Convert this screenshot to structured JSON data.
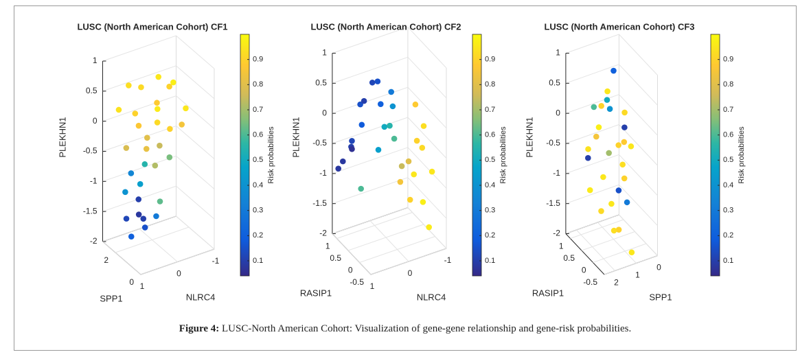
{
  "chart_data": [
    {
      "type": "scatter3d",
      "title": "LUSC (North American Cohort) CF1",
      "xlabel": "SPP1",
      "ylabel": "NLRC4",
      "zlabel": "PLEKHN1",
      "xlim": [
        0,
        3
      ],
      "xticks": [
        0,
        2
      ],
      "ylim": [
        -1,
        1
      ],
      "yticks": [
        -1,
        0,
        1
      ],
      "zlim": [
        -2,
        1
      ],
      "zticks": [
        -2,
        -1.5,
        -1,
        -0.5,
        0,
        0.5,
        1
      ],
      "grid": true,
      "colorbar_label": "Risk probabilities",
      "clim": [
        0.04,
        1.0
      ],
      "cticks": [
        0.1,
        0.2,
        0.3,
        0.4,
        0.5,
        0.6,
        0.7,
        0.8,
        0.9
      ],
      "colormap": "parula",
      "x": [
        1.5,
        2,
        1.2,
        1.8,
        2.4,
        1,
        1.6,
        0.8,
        2.2,
        1.3,
        1.9,
        0.6,
        2.6,
        1.4,
        1,
        2.1,
        1.7,
        0.9,
        2.3,
        1.5,
        2,
        1.2,
        2.5,
        1.8,
        0.8,
        2.2,
        1.6,
        2,
        1.4,
        2.4,
        1.9,
        1.1
      ],
      "y": [
        0,
        0.3,
        -0.3,
        -0.4,
        0.5,
        0.2,
        0.6,
        -0.5,
        -0.2,
        0.1,
        0.4,
        0,
        0.7,
        -0.6,
        0.5,
        0.1,
        -0.1,
        0.3,
        0.6,
        -0.3,
        0.2,
        0.6,
        0.4,
        0.8,
        0.2,
        0.3,
        0.5,
        0.7,
        0.4,
        0.1,
        0.6,
        0.2
      ],
      "z": [
        0.8,
        0.6,
        0.7,
        0.5,
        0.6,
        0.4,
        0.3,
        0.3,
        0.2,
        0.1,
        0,
        0.1,
        0.2,
        -0.1,
        -0.2,
        -0.3,
        -0.4,
        -0.5,
        -0.4,
        -0.6,
        -0.7,
        -0.8,
        -0.9,
        -1,
        -1.1,
        -1.3,
        -1.4,
        -1.5,
        -1.6,
        -1.7,
        -1.8,
        -1.4
      ],
      "values": [
        0.95,
        0.92,
        0.97,
        0.9,
        0.93,
        0.96,
        0.9,
        0.95,
        0.88,
        0.92,
        0.87,
        0.9,
        0.94,
        0.85,
        0.82,
        0.8,
        0.75,
        0.72,
        0.78,
        0.65,
        0.55,
        0.45,
        0.35,
        0.4,
        0.62,
        0.1,
        0.08,
        0.12,
        0.15,
        0.1,
        0.2,
        0.3
      ]
    },
    {
      "type": "scatter3d",
      "title": "LUSC (North American Cohort) CF2",
      "xlabel": "RASIP1",
      "ylabel": "NLRC4",
      "zlabel": "PLEKHN1",
      "xlim": [
        -0.5,
        1.2
      ],
      "xticks": [
        -0.5,
        0,
        0.5,
        1
      ],
      "ylim": [
        -1,
        1
      ],
      "yticks": [
        -1,
        0,
        1
      ],
      "zlim": [
        -2,
        1
      ],
      "zticks": [
        -2,
        -1.5,
        -1,
        -0.5,
        0,
        0.5,
        1
      ],
      "grid": true,
      "colorbar_label": "Risk probabilities",
      "clim": [
        0.04,
        1.0
      ],
      "cticks": [
        0.1,
        0.2,
        0.3,
        0.4,
        0.5,
        0.6,
        0.7,
        0.8,
        0.9
      ],
      "colormap": "parula",
      "x": [
        0.9,
        0.7,
        1,
        0.5,
        0.8,
        0.3,
        0.6,
        0.2,
        0.4,
        1.1,
        0.9,
        0.1,
        0.2,
        0.4,
        0,
        0.3,
        0.5,
        0,
        -0.2,
        0.1,
        -0.1,
        0.2,
        -0.3,
        0,
        0.1,
        -0.2,
        0.3,
        -0.4,
        0.2,
        0.6
      ],
      "y": [
        0.9,
        0.8,
        0.6,
        0.9,
        0.5,
        0.7,
        0.3,
        0.4,
        0.2,
        0.9,
        0.4,
        0.1,
        0,
        0.1,
        0.2,
        -0.1,
        0.2,
        -0.3,
        -0.4,
        -0.5,
        -0.6,
        -0.2,
        -0.5,
        -0.7,
        -0.4,
        -0.8,
        -0.3,
        -0.6,
        -0.6,
        0.6
      ],
      "z": [
        -0.7,
        -0.4,
        -0.6,
        -0.2,
        0.2,
        0.5,
        0.6,
        0.8,
        0.3,
        -0.9,
        -0.2,
        0.6,
        0.3,
        -0.1,
        0.1,
        -0.3,
        -0.5,
        -0.6,
        -0.2,
        -0.9,
        -0.4,
        -1,
        -1.2,
        -0.1,
        -1.3,
        -0.8,
        -0.8,
        -1.6,
        0.2,
        -1.1
      ],
      "values": [
        0.08,
        0.1,
        0.06,
        0.12,
        0.15,
        0.1,
        0.12,
        0.15,
        0.2,
        0.08,
        0.18,
        0.3,
        0.4,
        0.5,
        0.55,
        0.6,
        0.45,
        0.8,
        0.9,
        0.95,
        0.92,
        0.85,
        0.97,
        0.93,
        0.9,
        0.95,
        0.75,
        0.96,
        0.88,
        0.6
      ]
    },
    {
      "type": "scatter3d",
      "title": "LUSC (North American Cohort) CF3",
      "xlabel": "RASIP1",
      "ylabel": "SPP1",
      "zlabel": "PLEKHN1",
      "xlim": [
        -0.5,
        1.2
      ],
      "xticks": [
        -0.5,
        0,
        0.5,
        1
      ],
      "ylim": [
        0,
        2.5
      ],
      "yticks": [
        0,
        1,
        2
      ],
      "zlim": [
        -2,
        1
      ],
      "zticks": [
        -2,
        -1.5,
        -1,
        -0.5,
        0,
        0.5,
        1
      ],
      "grid": true,
      "colorbar_label": "Risk probabilities",
      "clim": [
        0.04,
        1.0
      ],
      "cticks": [
        0.1,
        0.2,
        0.3,
        0.4,
        0.5,
        0.6,
        0.7,
        0.8,
        0.9
      ],
      "colormap": "parula",
      "x": [
        0.3,
        0.5,
        0.1,
        0.6,
        0.2,
        0.4,
        0,
        0.7,
        0.2,
        0.5,
        0.1,
        0.8,
        0.3,
        -0.1,
        0.4,
        0.6,
        0,
        0.2,
        0.5,
        -0.2,
        0.3,
        0.9,
        0.1,
        0.6,
        0.4,
        -0.3,
        0.2
      ],
      "y": [
        1.5,
        1,
        2,
        1.2,
        0.8,
        1.8,
        1.3,
        1.6,
        0.5,
        2.2,
        1,
        0.9,
        1.7,
        1.4,
        0.6,
        2,
        0.9,
        1.9,
        1.1,
        1.5,
        0.7,
        1.5,
        1.6,
        0.4,
        2.3,
        1,
        1.3
      ],
      "z": [
        0.6,
        0.8,
        0.5,
        0.3,
        0.2,
        0,
        -0.2,
        -0.3,
        -0.4,
        -0.5,
        -0.6,
        -0.7,
        -0.8,
        -0.9,
        -1,
        -1.1,
        -1.2,
        -1.3,
        -1.4,
        -1.5,
        -0.1,
        0.1,
        0.4,
        -0.5,
        -0.3,
        -1.9,
        -1.7
      ],
      "values": [
        0.95,
        0.2,
        0.9,
        0.5,
        0.92,
        0.97,
        0.9,
        0.85,
        0.95,
        0.1,
        0.93,
        0.7,
        0.95,
        0.15,
        0.9,
        0.96,
        0.3,
        0.92,
        0.95,
        0.9,
        0.1,
        0.6,
        0.4,
        0.88,
        0.94,
        0.95,
        0.93
      ]
    }
  ],
  "caption": {
    "label": "Figure 4:",
    "text": "LUSC-North American Cohort:  Visualization of gene-gene relationship and gene-risk probabilities."
  }
}
